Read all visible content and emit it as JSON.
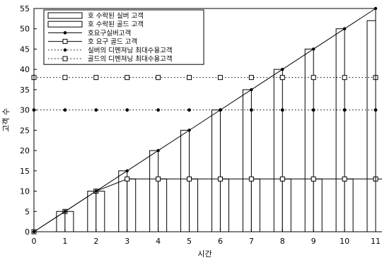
{
  "chart_data": {
    "type": "bar",
    "xlabel": "시간",
    "ylabel": "고객 수",
    "x": [
      0,
      1,
      2,
      3,
      4,
      5,
      6,
      7,
      8,
      9,
      10,
      11
    ],
    "xlim": [
      0,
      11
    ],
    "ylim": [
      0,
      55
    ],
    "yticks": [
      0,
      5,
      10,
      15,
      20,
      25,
      30,
      35,
      40,
      45,
      50,
      55
    ],
    "grid": false,
    "legend_position": "top-left",
    "series": [
      {
        "name": "호 수락된 실버 고객",
        "kind": "bar",
        "values": [
          0,
          5,
          10,
          15,
          20,
          25,
          30,
          35,
          40,
          45,
          50,
          52
        ]
      },
      {
        "name": "호 수락된 골드 고객",
        "kind": "bar",
        "values": [
          0,
          5,
          10,
          13,
          13,
          13,
          13,
          13,
          13,
          13,
          13,
          13
        ]
      },
      {
        "name": "호요구실버고객",
        "kind": "line",
        "marker": "dot",
        "values": [
          0,
          5,
          10,
          15,
          20,
          25,
          30,
          35,
          40,
          45,
          50,
          55
        ]
      },
      {
        "name": "호 요구 골드 고객",
        "kind": "line",
        "marker": "square",
        "values": [
          0,
          5,
          10,
          13,
          13,
          13,
          13,
          13,
          13,
          13,
          13,
          13
        ]
      },
      {
        "name": "실버의 디멘져닝 최대수용고객",
        "kind": "dotted",
        "marker": "dot",
        "values": [
          30,
          30,
          30,
          30,
          30,
          30,
          30,
          30,
          30,
          30,
          30,
          30
        ]
      },
      {
        "name": "골드의 디멘져닝 최대수용고객",
        "kind": "dotted",
        "marker": "square",
        "values": [
          38,
          38,
          38,
          38,
          38,
          38,
          38,
          38,
          38,
          38,
          38,
          38
        ]
      }
    ]
  }
}
